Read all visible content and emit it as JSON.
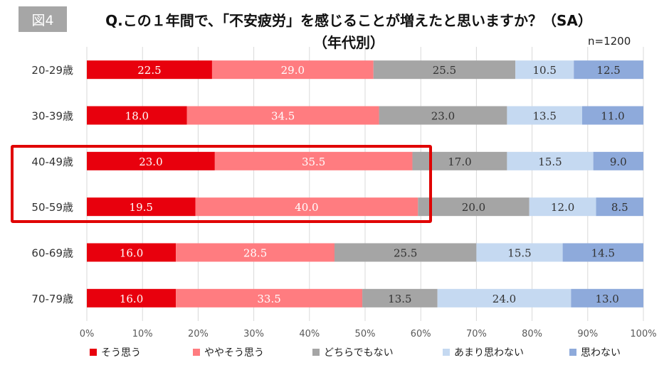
{
  "figure_label": "図4",
  "title_line1": "Q.この１年間で、「不安疲労」を感じることが増えたと思いますか？（SA）",
  "title_line2": "（年代別）",
  "sample_note": "n=1200",
  "chart_data": {
    "type": "bar",
    "orientation": "horizontal",
    "stacked": true,
    "percent_stacked": true,
    "categories": [
      "20-29歳",
      "30-39歳",
      "40-49歳",
      "50-59歳",
      "60-69歳",
      "70-79歳"
    ],
    "series": [
      {
        "name": "そう思う",
        "color": "#e8000d",
        "values": [
          22.5,
          18.0,
          23.0,
          19.5,
          16.0,
          16.0
        ]
      },
      {
        "name": "ややそう思う",
        "color": "#ff7c80",
        "values": [
          29.0,
          34.5,
          35.5,
          40.0,
          28.5,
          33.5
        ]
      },
      {
        "name": "どちらでもない",
        "color": "#a5a5a5",
        "values": [
          25.5,
          23.0,
          17.0,
          20.0,
          25.5,
          13.5
        ]
      },
      {
        "name": "あまり思わない",
        "color": "#c5d9f1",
        "values": [
          10.5,
          13.5,
          15.5,
          12.0,
          15.5,
          24.0
        ]
      },
      {
        "name": "思わない",
        "color": "#8eaadb",
        "values": [
          12.5,
          11.0,
          9.0,
          8.5,
          14.5,
          13.0
        ]
      }
    ],
    "x_ticks": [
      "0%",
      "10%",
      "20%",
      "30%",
      "40%",
      "50%",
      "60%",
      "70%",
      "80%",
      "90%",
      "100%"
    ],
    "xlim": [
      0,
      100
    ],
    "grid": true,
    "legend_position": "bottom",
    "highlight_categories": [
      "40-49歳",
      "50-59歳"
    ],
    "highlight_color": "#e00000"
  }
}
